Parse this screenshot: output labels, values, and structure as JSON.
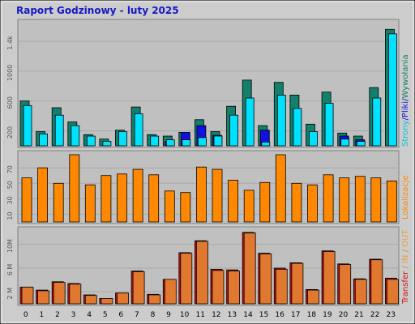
{
  "title": "Raport Godzinowy -  luty 2025",
  "colors": {
    "background": "#cccccc",
    "panel": "#c0c0c0",
    "pages": "#12806a",
    "files": "#00e0ff",
    "hits": "#1010e0",
    "visits": "#ff8800",
    "in": "#e07830",
    "out": "#d01010",
    "title": "#1818c8"
  },
  "chart_data": [
    {
      "type": "bar",
      "name": "hits-pages-files",
      "categories": [
        "0",
        "1",
        "2",
        "3",
        "4",
        "5",
        "6",
        "7",
        "8",
        "9",
        "10",
        "11",
        "12",
        "13",
        "14",
        "15",
        "16",
        "17",
        "18",
        "19",
        "20",
        "21",
        "22",
        "23"
      ],
      "ylim": [
        0,
        1650
      ],
      "ticks": [
        "200",
        "600",
        "1000",
        "1.4k"
      ],
      "tick_values": [
        200,
        600,
        1000,
        1400
      ],
      "right_label": {
        "a": "Strony",
        "sep1": "/",
        "b": "Pliki",
        "sep2": "/",
        "c": "Wywołania"
      },
      "series": [
        {
          "key": "pages",
          "values": [
            600,
            190,
            510,
            320,
            150,
            90,
            210,
            520,
            150,
            130,
            180,
            350,
            190,
            530,
            880,
            270,
            850,
            680,
            290,
            720,
            170,
            130,
            780,
            1560
          ]
        },
        {
          "key": "files",
          "values": [
            540,
            160,
            410,
            270,
            130,
            60,
            190,
            430,
            130,
            80,
            80,
            110,
            130,
            410,
            640,
            50,
            680,
            500,
            190,
            570,
            90,
            60,
            640,
            1500
          ]
        },
        {
          "key": "hits",
          "values": [
            0,
            0,
            0,
            0,
            0,
            0,
            0,
            0,
            0,
            60,
            180,
            270,
            140,
            0,
            0,
            210,
            0,
            0,
            0,
            0,
            130,
            80,
            0,
            0
          ]
        }
      ]
    },
    {
      "type": "bar",
      "name": "visits",
      "categories": [
        "0",
        "1",
        "2",
        "3",
        "4",
        "5",
        "6",
        "7",
        "8",
        "9",
        "10",
        "11",
        "12",
        "13",
        "14",
        "15",
        "16",
        "17",
        "18",
        "19",
        "20",
        "21",
        "22",
        "23"
      ],
      "ylim": [
        0,
        88
      ],
      "ticks": [
        "10",
        "30",
        "50",
        "70"
      ],
      "tick_values": [
        10,
        30,
        50,
        70
      ],
      "right_label": "Lokalizacje",
      "series": [
        {
          "key": "visits",
          "values": [
            57,
            70,
            50,
            87,
            48,
            60,
            62,
            68,
            61,
            40,
            38,
            71,
            68,
            54,
            41,
            51,
            87,
            50,
            48,
            61,
            57,
            59,
            57,
            53
          ]
        }
      ]
    },
    {
      "type": "bar",
      "name": "traffic",
      "categories": [
        "0",
        "1",
        "2",
        "3",
        "4",
        "5",
        "6",
        "7",
        "8",
        "9",
        "10",
        "11",
        "12",
        "13",
        "14",
        "15",
        "16",
        "17",
        "18",
        "19",
        "20",
        "21",
        "22",
        "23"
      ],
      "ylim": [
        0,
        12.4
      ],
      "ticks": [
        "2 M",
        "6 M",
        "10M"
      ],
      "tick_values": [
        2,
        6,
        10
      ],
      "right_label": {
        "a": "Transfer",
        "sep1": " / ",
        "b": "IN",
        "sep2": " / ",
        "c": "OUT"
      },
      "series": [
        {
          "key": "out",
          "values": [
            2.8,
            2.3,
            3.7,
            3.4,
            1.5,
            0.9,
            1.8,
            5.5,
            1.6,
            4.1,
            8.6,
            10.6,
            5.8,
            5.7,
            12.0,
            8.5,
            6.0,
            6.9,
            2.4,
            8.9,
            6.7,
            4.2,
            7.5,
            4.3
          ]
        },
        {
          "key": "in",
          "values": [
            2.8,
            2.2,
            3.6,
            3.3,
            1.4,
            0.9,
            1.8,
            5.4,
            1.5,
            4.1,
            8.5,
            10.5,
            5.6,
            5.5,
            11.9,
            8.4,
            5.8,
            6.8,
            2.3,
            8.8,
            6.6,
            4.1,
            7.4,
            4.1
          ]
        }
      ]
    }
  ]
}
